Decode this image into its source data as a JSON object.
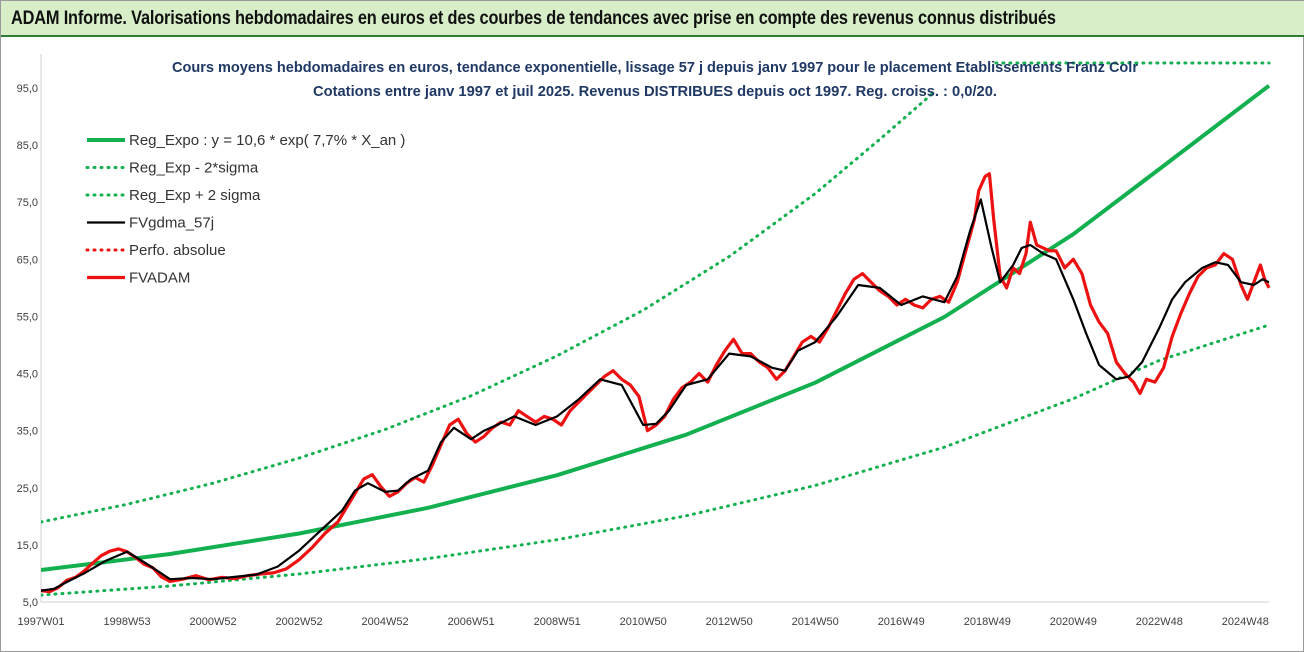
{
  "header": {
    "title": "ADAM Informe. Valorisations hebdomadaires en euros et des courbes de tendances avec prise en compte des revenus connus distribués"
  },
  "colors": {
    "header_bg": "#d8eec8",
    "header_border": "#2e7d32",
    "regression": "#12b04f",
    "sigma_bands": "#12b04f",
    "smoothed": "#000000",
    "absolute_perf": "#ee1111",
    "fvadam": "#ee1111",
    "subtitle": "#1f3864"
  },
  "chart_data": {
    "type": "line",
    "title_line1": "Cours moyens hebdomadaires en euros, tendance exponentielle, lissage 57 j depuis janv 1997 pour le placement Etablissements Franz Colr",
    "title_line2": "Cotations entre janv 1997 et juil 2025. Revenus DISTRIBUES depuis oct 1997. Reg. croiss. : 0,0/20.",
    "xlabel": "",
    "ylabel": "",
    "xlim": [
      1997.0,
      2025.55
    ],
    "ylim": [
      5,
      100
    ],
    "grid": false,
    "legend_position": "top-left",
    "y_ticks": [
      "5,0",
      "15,0",
      "25,0",
      "35,0",
      "45,0",
      "55,0",
      "65,0",
      "75,0",
      "85,0",
      "95,0"
    ],
    "y_tick_values": [
      5,
      15,
      25,
      35,
      45,
      55,
      65,
      75,
      85,
      95
    ],
    "x_ticks": [
      "1997W01",
      "1998W53",
      "2000W52",
      "2002W52",
      "2004W52",
      "2006W51",
      "2008W51",
      "2010W50",
      "2012W50",
      "2014W50",
      "2016W49",
      "2018W49",
      "2020W49",
      "2022W48",
      "2024W48"
    ],
    "x_tick_values": [
      1997.0,
      1999.0,
      2001.0,
      2003.0,
      2005.0,
      2007.0,
      2009.0,
      2011.0,
      2013.0,
      2015.0,
      2017.0,
      2019.0,
      2021.0,
      2023.0,
      2025.0
    ],
    "regression": {
      "formula_a": 10.6,
      "rate": 0.077,
      "sigma_low_at_start": 6.2,
      "sigma_high_at_start": 19.0
    },
    "series": [
      {
        "name": "Reg_Expo : y = 10,6 * exp( 7,7% *  X_an )",
        "style": "solid-thick",
        "color_key": "regression",
        "x": [
          1997.0,
          2000.0,
          2003.0,
          2006.0,
          2009.0,
          2012.0,
          2015.0,
          2018.0,
          2021.0,
          2023.0,
          2025.55
        ],
        "y": [
          10.6,
          13.4,
          17.0,
          21.5,
          27.2,
          34.3,
          43.4,
          54.9,
          69.4,
          80.8,
          95.4
        ]
      },
      {
        "name": "Reg_Exp - 2*sigma",
        "style": "dotted",
        "color_key": "sigma_bands",
        "x": [
          1997.0,
          2000.0,
          2003.0,
          2006.0,
          2009.0,
          2012.0,
          2015.0,
          2018.0,
          2021.0,
          2023.0,
          2025.55
        ],
        "y": [
          6.2,
          7.8,
          9.9,
          12.6,
          15.9,
          20.1,
          25.4,
          32.1,
          40.6,
          47.3,
          53.5
        ]
      },
      {
        "name": "Reg_Exp + 2 sigma",
        "style": "dotted",
        "color_key": "sigma_bands",
        "x": [
          1997.0,
          1999.0,
          2001.0,
          2003.0,
          2005.0,
          2007.0,
          2009.0,
          2011.0,
          2013.0,
          2015.0,
          2016.5,
          2017.8
        ],
        "y": [
          19.0,
          22.1,
          25.8,
          30.2,
          35.2,
          41.1,
          48.1,
          56.1,
          65.5,
          76.5,
          86.0,
          94.5
        ]
      },
      {
        "name": "FVgdma_57j",
        "style": "solid",
        "color_key": "smoothed",
        "x": [
          1997.0,
          1997.3,
          1997.6,
          1998.0,
          1998.5,
          1999.0,
          1999.5,
          2000.0,
          2000.5,
          2001.0,
          2001.5,
          2002.0,
          2002.5,
          2003.0,
          2003.5,
          2004.0,
          2004.3,
          2004.6,
          2005.0,
          2005.3,
          2005.6,
          2006.0,
          2006.3,
          2006.6,
          2007.0,
          2007.3,
          2007.6,
          2008.0,
          2008.5,
          2009.0,
          2009.5,
          2010.0,
          2010.5,
          2011.0,
          2011.3,
          2011.6,
          2012.0,
          2012.5,
          2013.0,
          2013.5,
          2014.0,
          2014.3,
          2014.6,
          2015.0,
          2015.5,
          2016.0,
          2016.5,
          2017.0,
          2017.5,
          2018.0,
          2018.3,
          2018.6,
          2018.85,
          2019.1,
          2019.3,
          2019.6,
          2019.8,
          2020.0,
          2020.3,
          2020.6,
          2021.0,
          2021.3,
          2021.6,
          2022.0,
          2022.3,
          2022.6,
          2023.0,
          2023.3,
          2023.6,
          2024.0,
          2024.3,
          2024.6,
          2024.9,
          2025.2,
          2025.4,
          2025.55
        ],
        "y": [
          7.0,
          7.3,
          8.5,
          10.0,
          12.2,
          13.8,
          11.5,
          9.0,
          9.2,
          9.0,
          9.4,
          9.8,
          11.2,
          14.0,
          17.5,
          21.0,
          24.5,
          25.8,
          24.3,
          24.5,
          26.5,
          28.0,
          33.0,
          35.5,
          33.5,
          35.0,
          36.0,
          37.5,
          36.0,
          37.5,
          40.5,
          44.0,
          43.0,
          36.0,
          36.2,
          38.5,
          43.0,
          44.0,
          48.5,
          48.0,
          46.0,
          45.5,
          49.0,
          50.5,
          55.0,
          60.5,
          60.0,
          57.0,
          58.5,
          57.5,
          62.0,
          70.0,
          75.5,
          67.0,
          61.0,
          64.0,
          67.0,
          67.5,
          66.0,
          65.0,
          58.0,
          52.0,
          46.5,
          44.0,
          44.5,
          47.0,
          53.0,
          58.0,
          61.0,
          63.5,
          64.5,
          64.0,
          61.0,
          60.5,
          61.5,
          61.0
        ]
      },
      {
        "name": "Perfo. absolue",
        "style": "dotted",
        "color_key": "absolute_perf",
        "x": [],
        "y": []
      },
      {
        "name": "FVADAM",
        "style": "solid-thick",
        "color_key": "fvadam",
        "x": [
          1997.0,
          1997.2,
          1997.4,
          1997.6,
          1997.8,
          1998.0,
          1998.2,
          1998.4,
          1998.6,
          1998.8,
          1999.0,
          1999.2,
          1999.4,
          1999.6,
          1999.8,
          2000.0,
          2000.3,
          2000.6,
          2000.9,
          2001.2,
          2001.5,
          2001.8,
          2002.1,
          2002.4,
          2002.7,
          2003.0,
          2003.3,
          2003.6,
          2003.9,
          2004.1,
          2004.3,
          2004.5,
          2004.7,
          2004.9,
          2005.1,
          2005.3,
          2005.5,
          2005.7,
          2005.9,
          2006.1,
          2006.3,
          2006.5,
          2006.7,
          2006.9,
          2007.1,
          2007.3,
          2007.5,
          2007.7,
          2007.9,
          2008.1,
          2008.3,
          2008.5,
          2008.7,
          2008.9,
          2009.1,
          2009.3,
          2009.5,
          2009.7,
          2009.9,
          2010.1,
          2010.3,
          2010.5,
          2010.7,
          2010.9,
          2011.1,
          2011.3,
          2011.5,
          2011.7,
          2011.9,
          2012.1,
          2012.3,
          2012.5,
          2012.7,
          2012.9,
          2013.1,
          2013.3,
          2013.5,
          2013.7,
          2013.9,
          2014.1,
          2014.3,
          2014.5,
          2014.7,
          2014.9,
          2015.1,
          2015.3,
          2015.5,
          2015.7,
          2015.9,
          2016.1,
          2016.3,
          2016.5,
          2016.7,
          2016.9,
          2017.1,
          2017.3,
          2017.5,
          2017.7,
          2017.9,
          2018.1,
          2018.3,
          2018.5,
          2018.7,
          2018.8,
          2018.95,
          2019.05,
          2019.15,
          2019.3,
          2019.45,
          2019.6,
          2019.75,
          2019.9,
          2020.0,
          2020.15,
          2020.3,
          2020.45,
          2020.6,
          2020.8,
          2021.0,
          2021.2,
          2021.4,
          2021.6,
          2021.8,
          2022.0,
          2022.2,
          2022.4,
          2022.55,
          2022.7,
          2022.9,
          2023.1,
          2023.3,
          2023.5,
          2023.7,
          2023.9,
          2024.1,
          2024.3,
          2024.5,
          2024.7,
          2024.9,
          2025.05,
          2025.2,
          2025.35,
          2025.45,
          2025.55
        ],
        "y": [
          7.0,
          6.8,
          7.5,
          8.8,
          9.3,
          10.4,
          11.8,
          13.1,
          13.9,
          14.3,
          13.8,
          12.8,
          11.6,
          11.0,
          9.4,
          8.6,
          9.0,
          9.6,
          8.9,
          9.3,
          9.1,
          9.6,
          9.9,
          10.1,
          10.8,
          12.4,
          14.5,
          17.0,
          19.0,
          21.5,
          24.0,
          26.5,
          27.3,
          25.2,
          23.5,
          24.3,
          25.8,
          26.8,
          26.0,
          29.0,
          32.5,
          36.0,
          37.0,
          34.5,
          33.0,
          34.0,
          35.5,
          36.5,
          36.0,
          38.5,
          37.5,
          36.5,
          37.5,
          37.0,
          36.0,
          38.5,
          40.0,
          41.5,
          43.0,
          44.5,
          45.5,
          44.0,
          43.0,
          41.0,
          35.0,
          36.0,
          37.5,
          40.5,
          42.5,
          43.5,
          45.0,
          43.5,
          46.5,
          49.0,
          51.0,
          48.5,
          48.5,
          47.0,
          46.0,
          44.0,
          45.5,
          48.0,
          50.5,
          51.5,
          50.5,
          53.0,
          56.0,
          59.0,
          61.5,
          62.5,
          61.0,
          59.5,
          58.5,
          57.0,
          58.0,
          57.0,
          56.5,
          58.0,
          58.5,
          57.5,
          61.0,
          66.5,
          72.0,
          77.0,
          79.5,
          80.0,
          72.0,
          62.0,
          60.0,
          63.5,
          62.5,
          66.0,
          71.5,
          67.5,
          67.0,
          66.5,
          66.5,
          63.5,
          65.0,
          62.5,
          57.0,
          54.0,
          52.0,
          47.0,
          45.0,
          43.5,
          41.5,
          44.0,
          43.5,
          46.0,
          51.5,
          55.5,
          59.0,
          62.0,
          63.5,
          64.0,
          66.0,
          65.0,
          60.5,
          58.0,
          61.0,
          64.0,
          61.5,
          60.0
        ]
      }
    ]
  }
}
